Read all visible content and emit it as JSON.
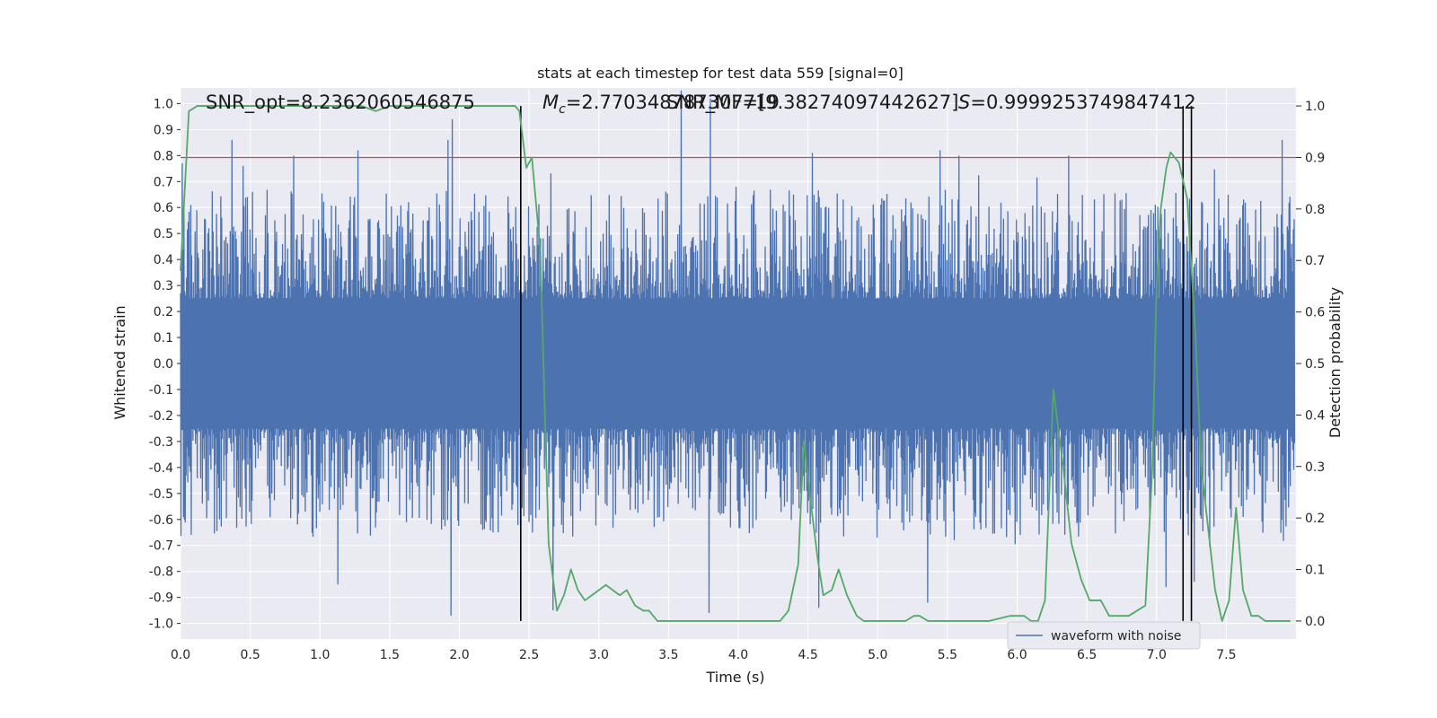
{
  "chart_data": {
    "type": "line",
    "title": "stats at each timestep for test data 559 [signal=0]",
    "xlabel": "Time (s)",
    "ylabel": "Whitened strain",
    "y2label": "Detection probability",
    "xlim": [
      0.0,
      8.0
    ],
    "ylim": [
      -1.06,
      1.06
    ],
    "y2lim": [
      -0.035,
      1.035
    ],
    "xticks": [
      "0.0",
      "0.5",
      "1.0",
      "1.5",
      "2.0",
      "2.5",
      "3.0",
      "3.5",
      "4.0",
      "4.5",
      "5.0",
      "5.5",
      "6.0",
      "6.5",
      "7.0",
      "7.5"
    ],
    "yticks": [
      "1.0",
      "0.9",
      "0.8",
      "0.7",
      "0.6",
      "0.5",
      "0.4",
      "0.3",
      "0.2",
      "0.1",
      "0.0",
      "-0.1",
      "-0.2",
      "-0.3",
      "-0.4",
      "-0.5",
      "-0.6",
      "-0.7",
      "-0.8",
      "-0.9",
      "-1.0"
    ],
    "y2ticks": [
      "1.0",
      "0.9",
      "0.8",
      "0.7",
      "0.6",
      "0.5",
      "0.4",
      "0.3",
      "0.2",
      "0.1",
      "0.0"
    ],
    "grid": true,
    "legend": {
      "position": "lower-right",
      "entries": [
        "waveform with noise"
      ]
    },
    "annotations": {
      "snr": "SNR_opt=8.2362060546875",
      "mc_symbol": "M",
      "mc_sub": "c",
      "mc_value": "=2.770348787307719",
      "snr_mf": "SNR_MF=[9.38274097442627]",
      "s_symbol": "S",
      "s_value": "=0.9999253749847412"
    },
    "threshold": {
      "y2": 0.9,
      "color": "#c44e52"
    },
    "vertical_lines_x": [
      2.44,
      7.19,
      7.25
    ],
    "series": [
      {
        "name": "waveform with noise",
        "axis": "left",
        "color": "#4c72b0",
        "kind": "noise",
        "envelope_typical": [
          -0.4,
          0.45
        ],
        "peaks": [
          [
            0.01,
            0.77
          ],
          [
            0.37,
            0.86
          ],
          [
            0.81,
            0.8
          ],
          [
            1.27,
            0.82
          ],
          [
            1.92,
            0.86
          ],
          [
            1.95,
            0.94
          ],
          [
            3.59,
            1.05
          ],
          [
            3.8,
            1.02
          ],
          [
            4.53,
            0.81
          ],
          [
            5.45,
            0.82
          ],
          [
            5.58,
            0.8
          ],
          [
            6.37,
            0.8
          ],
          [
            7.9,
            0.86
          ],
          [
            1.94,
            -0.97
          ],
          [
            2.67,
            -0.95
          ],
          [
            3.79,
            -0.96
          ],
          [
            4.58,
            -0.94
          ],
          [
            5.36,
            -0.92
          ],
          [
            1.13,
            -0.85
          ],
          [
            7.27,
            -0.84
          ],
          [
            7.07,
            -0.86
          ]
        ]
      },
      {
        "name": "",
        "axis": "right",
        "color": "#55a868",
        "x": [
          0.0,
          0.06,
          0.12,
          0.2,
          0.3,
          0.5,
          0.8,
          1.0,
          1.2,
          1.3,
          1.4,
          1.5,
          1.6,
          1.8,
          2.0,
          2.2,
          2.4,
          2.43,
          2.48,
          2.52,
          2.58,
          2.64,
          2.7,
          2.75,
          2.8,
          2.85,
          2.9,
          2.95,
          3.0,
          3.05,
          3.1,
          3.15,
          3.2,
          3.26,
          3.32,
          3.36,
          3.42,
          3.5,
          3.6,
          3.7,
          3.8,
          3.9,
          4.0,
          4.1,
          4.2,
          4.3,
          4.36,
          4.43,
          4.47,
          4.52,
          4.57,
          4.61,
          4.67,
          4.72,
          4.78,
          4.85,
          4.9,
          5.0,
          5.1,
          5.2,
          5.26,
          5.3,
          5.36,
          5.45,
          5.6,
          5.8,
          5.95,
          6.05,
          6.1,
          6.15,
          6.2,
          6.26,
          6.33,
          6.39,
          6.46,
          6.52,
          6.6,
          6.66,
          6.73,
          6.8,
          6.86,
          6.92,
          6.97,
          7.0,
          7.03,
          7.07,
          7.1,
          7.16,
          7.22,
          7.28,
          7.32,
          7.37,
          7.42,
          7.47,
          7.52,
          7.57,
          7.62,
          7.68,
          7.73,
          7.78,
          7.82,
          7.86,
          7.9,
          7.96
        ],
        "y": [
          0.68,
          0.99,
          1.0,
          1.0,
          1.0,
          1.0,
          1.0,
          1.0,
          1.0,
          1.0,
          0.99,
          1.0,
          1.0,
          1.0,
          1.0,
          1.0,
          1.0,
          0.99,
          0.88,
          0.9,
          0.72,
          0.15,
          0.02,
          0.05,
          0.1,
          0.06,
          0.04,
          0.05,
          0.06,
          0.07,
          0.06,
          0.05,
          0.06,
          0.03,
          0.02,
          0.02,
          0.0,
          0.0,
          0.0,
          0.0,
          0.0,
          0.0,
          0.0,
          0.0,
          0.0,
          0.0,
          0.02,
          0.11,
          0.35,
          0.23,
          0.12,
          0.05,
          0.06,
          0.1,
          0.05,
          0.01,
          0.0,
          0.0,
          0.0,
          0.0,
          0.01,
          0.01,
          0.0,
          0.0,
          0.0,
          0.0,
          0.01,
          0.01,
          0.0,
          0.0,
          0.04,
          0.45,
          0.3,
          0.15,
          0.08,
          0.04,
          0.04,
          0.01,
          0.01,
          0.01,
          0.02,
          0.03,
          0.3,
          0.65,
          0.8,
          0.88,
          0.91,
          0.89,
          0.82,
          0.55,
          0.3,
          0.18,
          0.06,
          0.0,
          0.04,
          0.22,
          0.06,
          0.01,
          0.01,
          0.0,
          0.0,
          0.0,
          0.0,
          0.0
        ]
      }
    ]
  }
}
